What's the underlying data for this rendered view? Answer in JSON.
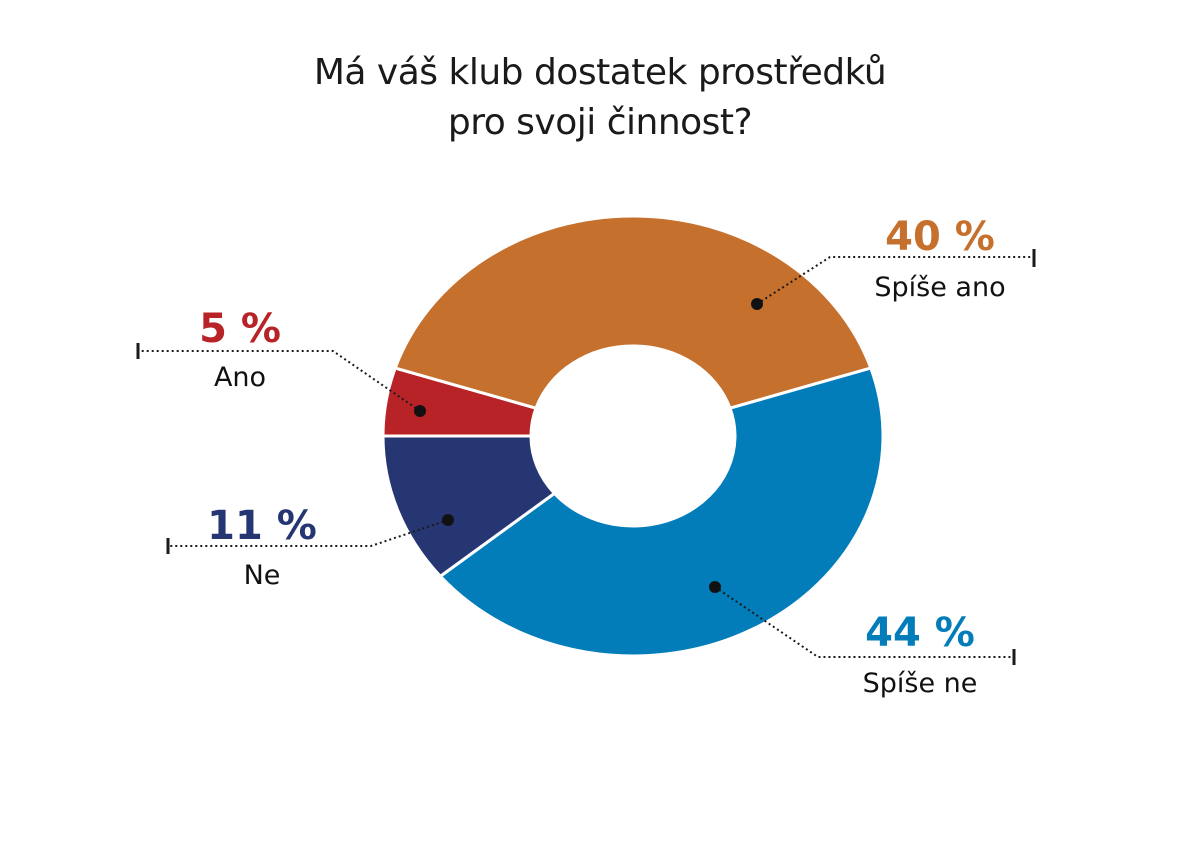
{
  "chart_data": {
    "type": "pie",
    "style": "donut",
    "title_lines": [
      "Má váš klub dostatek prostředků",
      "pro svoji činnost?"
    ],
    "unit": "%",
    "slices": [
      {
        "label": "Ano",
        "value": 5,
        "display": "5 %",
        "color": "#b82327"
      },
      {
        "label": "Spíše ano",
        "value": 40,
        "display": "40 %",
        "color": "#c6702e"
      },
      {
        "label": "Spíše ne",
        "value": 44,
        "display": "44 %",
        "color": "#037cba"
      },
      {
        "label": "Ne",
        "value": 11,
        "display": "11 %",
        "color": "#253672"
      }
    ],
    "legend": "none",
    "grid": false
  }
}
